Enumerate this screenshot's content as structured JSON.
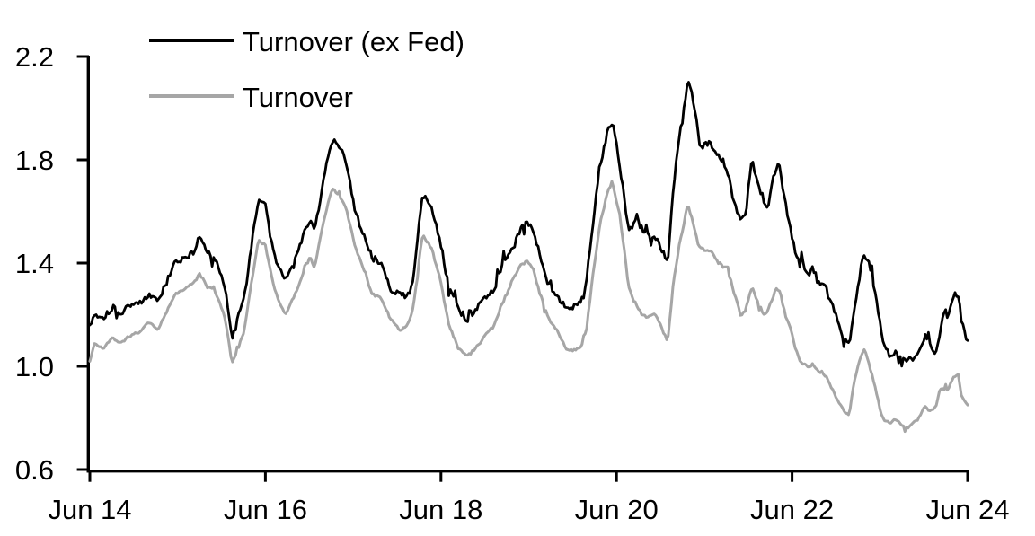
{
  "chart_data": {
    "type": "line",
    "title": "",
    "background_color": "#ffffff",
    "axis_color": "#000000",
    "text_color": "#000000",
    "x_axis": {
      "range": [
        0,
        10
      ],
      "ticks": [
        0,
        2,
        4,
        6,
        8,
        10
      ],
      "tick_labels": [
        "Jun 14",
        "Jun 16",
        "Jun 18",
        "Jun 20",
        "Jun 22",
        "Jun 24"
      ],
      "grid": false
    },
    "y_axis": {
      "range": [
        0.6,
        2.2
      ],
      "ticks": [
        0.6,
        1.0,
        1.4,
        1.8,
        2.2
      ],
      "tick_labels": [
        "0.6",
        "1.0",
        "1.4",
        "1.8",
        "2.2"
      ],
      "grid": false
    },
    "legend": {
      "position": "top-left-inside",
      "entries": [
        "Turnover (ex Fed)",
        "Turnover"
      ]
    },
    "series": [
      {
        "name": "Turnover (ex Fed)",
        "color": "#000000",
        "points": [
          [
            0,
            1.16
          ],
          [
            0.05,
            1.2
          ],
          [
            0.15,
            1.19
          ],
          [
            0.26,
            1.23
          ],
          [
            0.36,
            1.21
          ],
          [
            0.46,
            1.24
          ],
          [
            0.56,
            1.24
          ],
          [
            0.67,
            1.28
          ],
          [
            0.77,
            1.25
          ],
          [
            0.87,
            1.32
          ],
          [
            0.97,
            1.4
          ],
          [
            1.07,
            1.42
          ],
          [
            1.18,
            1.44
          ],
          [
            1.25,
            1.5
          ],
          [
            1.33,
            1.44
          ],
          [
            1.43,
            1.42
          ],
          [
            1.54,
            1.31
          ],
          [
            1.62,
            1.1
          ],
          [
            1.69,
            1.19
          ],
          [
            1.76,
            1.27
          ],
          [
            1.84,
            1.46
          ],
          [
            1.92,
            1.65
          ],
          [
            2.0,
            1.63
          ],
          [
            2.05,
            1.52
          ],
          [
            2.1,
            1.44
          ],
          [
            2.15,
            1.38
          ],
          [
            2.23,
            1.34
          ],
          [
            2.35,
            1.43
          ],
          [
            2.46,
            1.53
          ],
          [
            2.51,
            1.56
          ],
          [
            2.56,
            1.52
          ],
          [
            2.66,
            1.72
          ],
          [
            2.76,
            1.88
          ],
          [
            2.85,
            1.85
          ],
          [
            2.92,
            1.8
          ],
          [
            3.02,
            1.6
          ],
          [
            3.12,
            1.51
          ],
          [
            3.22,
            1.42
          ],
          [
            3.33,
            1.4
          ],
          [
            3.43,
            1.3
          ],
          [
            3.53,
            1.28
          ],
          [
            3.63,
            1.27
          ],
          [
            3.68,
            1.33
          ],
          [
            3.74,
            1.52
          ],
          [
            3.79,
            1.67
          ],
          [
            3.85,
            1.64
          ],
          [
            3.89,
            1.61
          ],
          [
            3.99,
            1.49
          ],
          [
            4.09,
            1.31
          ],
          [
            4.2,
            1.22
          ],
          [
            4.3,
            1.18
          ],
          [
            4.4,
            1.22
          ],
          [
            4.5,
            1.27
          ],
          [
            4.61,
            1.3
          ],
          [
            4.71,
            1.41
          ],
          [
            4.81,
            1.45
          ],
          [
            4.91,
            1.53
          ],
          [
            4.98,
            1.56
          ],
          [
            5.05,
            1.52
          ],
          [
            5.12,
            1.44
          ],
          [
            5.22,
            1.32
          ],
          [
            5.32,
            1.27
          ],
          [
            5.44,
            1.22
          ],
          [
            5.58,
            1.24
          ],
          [
            5.63,
            1.28
          ],
          [
            5.66,
            1.34
          ],
          [
            5.73,
            1.55
          ],
          [
            5.81,
            1.77
          ],
          [
            5.91,
            1.93
          ],
          [
            5.96,
            1.95
          ],
          [
            6.04,
            1.77
          ],
          [
            6.14,
            1.52
          ],
          [
            6.19,
            1.55
          ],
          [
            6.24,
            1.57
          ],
          [
            6.29,
            1.53
          ],
          [
            6.35,
            1.51
          ],
          [
            6.45,
            1.5
          ],
          [
            6.55,
            1.43
          ],
          [
            6.58,
            1.39
          ],
          [
            6.65,
            1.7
          ],
          [
            6.72,
            1.9
          ],
          [
            6.76,
            1.97
          ],
          [
            6.81,
            2.11
          ],
          [
            6.86,
            2.05
          ],
          [
            6.91,
            1.95
          ],
          [
            6.93,
            1.9
          ],
          [
            6.96,
            1.84
          ],
          [
            7.01,
            1.86
          ],
          [
            7.06,
            1.87
          ],
          [
            7.11,
            1.84
          ],
          [
            7.16,
            1.82
          ],
          [
            7.22,
            1.79
          ],
          [
            7.27,
            1.75
          ],
          [
            7.32,
            1.66
          ],
          [
            7.37,
            1.6
          ],
          [
            7.42,
            1.57
          ],
          [
            7.47,
            1.58
          ],
          [
            7.52,
            1.75
          ],
          [
            7.55,
            1.8
          ],
          [
            7.59,
            1.73
          ],
          [
            7.68,
            1.64
          ],
          [
            7.73,
            1.61
          ],
          [
            7.76,
            1.7
          ],
          [
            7.82,
            1.79
          ],
          [
            7.86,
            1.77
          ],
          [
            7.93,
            1.62
          ],
          [
            7.98,
            1.54
          ],
          [
            8.03,
            1.45
          ],
          [
            8.09,
            1.39
          ],
          [
            8.14,
            1.37
          ],
          [
            8.19,
            1.36
          ],
          [
            8.24,
            1.38
          ],
          [
            8.29,
            1.33
          ],
          [
            8.34,
            1.32
          ],
          [
            8.39,
            1.3
          ],
          [
            8.44,
            1.25
          ],
          [
            8.49,
            1.21
          ],
          [
            8.55,
            1.14
          ],
          [
            8.6,
            1.1
          ],
          [
            8.65,
            1.08
          ],
          [
            8.7,
            1.19
          ],
          [
            8.75,
            1.31
          ],
          [
            8.8,
            1.41
          ],
          [
            8.82,
            1.44
          ],
          [
            8.85,
            1.42
          ],
          [
            8.9,
            1.37
          ],
          [
            8.96,
            1.26
          ],
          [
            9.01,
            1.15
          ],
          [
            9.06,
            1.07
          ],
          [
            9.11,
            1.04
          ],
          [
            9.16,
            1.05
          ],
          [
            9.21,
            1.05
          ],
          [
            9.26,
            1.03
          ],
          [
            9.31,
            1.02
          ],
          [
            9.37,
            1.03
          ],
          [
            9.42,
            1.04
          ],
          [
            9.47,
            1.08
          ],
          [
            9.52,
            1.12
          ],
          [
            9.56,
            1.1
          ],
          [
            9.6,
            1.05
          ],
          [
            9.64,
            1.05
          ],
          [
            9.67,
            1.1
          ],
          [
            9.7,
            1.17
          ],
          [
            9.72,
            1.21
          ],
          [
            9.75,
            1.22
          ],
          [
            9.77,
            1.19
          ],
          [
            9.81,
            1.25
          ],
          [
            9.84,
            1.28
          ],
          [
            9.89,
            1.28
          ],
          [
            9.93,
            1.18
          ],
          [
            9.97,
            1.12
          ],
          [
            10,
            1.1
          ]
        ]
      },
      {
        "name": "Turnover",
        "color": "#a6a6a6",
        "points": [
          [
            0,
            1.02
          ],
          [
            0.05,
            1.09
          ],
          [
            0.15,
            1.07
          ],
          [
            0.26,
            1.11
          ],
          [
            0.36,
            1.09
          ],
          [
            0.46,
            1.12
          ],
          [
            0.56,
            1.13
          ],
          [
            0.67,
            1.17
          ],
          [
            0.77,
            1.14
          ],
          [
            0.87,
            1.21
          ],
          [
            0.97,
            1.28
          ],
          [
            1.07,
            1.3
          ],
          [
            1.18,
            1.32
          ],
          [
            1.25,
            1.36
          ],
          [
            1.33,
            1.31
          ],
          [
            1.43,
            1.29
          ],
          [
            1.54,
            1.19
          ],
          [
            1.62,
            1.01
          ],
          [
            1.69,
            1.07
          ],
          [
            1.76,
            1.14
          ],
          [
            1.84,
            1.32
          ],
          [
            1.92,
            1.49
          ],
          [
            2.0,
            1.47
          ],
          [
            2.05,
            1.38
          ],
          [
            2.1,
            1.31
          ],
          [
            2.15,
            1.25
          ],
          [
            2.23,
            1.2
          ],
          [
            2.35,
            1.29
          ],
          [
            2.46,
            1.39
          ],
          [
            2.51,
            1.42
          ],
          [
            2.56,
            1.38
          ],
          [
            2.66,
            1.56
          ],
          [
            2.76,
            1.69
          ],
          [
            2.85,
            1.66
          ],
          [
            2.92,
            1.61
          ],
          [
            3.02,
            1.47
          ],
          [
            3.12,
            1.37
          ],
          [
            3.22,
            1.28
          ],
          [
            3.33,
            1.26
          ],
          [
            3.43,
            1.18
          ],
          [
            3.53,
            1.14
          ],
          [
            3.58,
            1.15
          ],
          [
            3.63,
            1.17
          ],
          [
            3.68,
            1.22
          ],
          [
            3.74,
            1.38
          ],
          [
            3.79,
            1.51
          ],
          [
            3.85,
            1.48
          ],
          [
            3.89,
            1.46
          ],
          [
            3.99,
            1.34
          ],
          [
            4.09,
            1.16
          ],
          [
            4.2,
            1.07
          ],
          [
            4.3,
            1.04
          ],
          [
            4.4,
            1.07
          ],
          [
            4.5,
            1.12
          ],
          [
            4.61,
            1.16
          ],
          [
            4.71,
            1.25
          ],
          [
            4.81,
            1.33
          ],
          [
            4.91,
            1.39
          ],
          [
            4.98,
            1.41
          ],
          [
            5.05,
            1.38
          ],
          [
            5.12,
            1.29
          ],
          [
            5.22,
            1.19
          ],
          [
            5.32,
            1.14
          ],
          [
            5.44,
            1.06
          ],
          [
            5.58,
            1.07
          ],
          [
            5.63,
            1.1
          ],
          [
            5.66,
            1.15
          ],
          [
            5.73,
            1.35
          ],
          [
            5.81,
            1.55
          ],
          [
            5.91,
            1.69
          ],
          [
            5.96,
            1.7
          ],
          [
            6.04,
            1.58
          ],
          [
            6.14,
            1.31
          ],
          [
            6.19,
            1.26
          ],
          [
            6.24,
            1.23
          ],
          [
            6.29,
            1.2
          ],
          [
            6.35,
            1.19
          ],
          [
            6.45,
            1.2
          ],
          [
            6.55,
            1.12
          ],
          [
            6.58,
            1.09
          ],
          [
            6.65,
            1.33
          ],
          [
            6.72,
            1.48
          ],
          [
            6.76,
            1.54
          ],
          [
            6.81,
            1.63
          ],
          [
            6.86,
            1.57
          ],
          [
            6.91,
            1.5
          ],
          [
            6.93,
            1.47
          ],
          [
            6.96,
            1.46
          ],
          [
            7.01,
            1.45
          ],
          [
            7.06,
            1.45
          ],
          [
            7.11,
            1.43
          ],
          [
            7.16,
            1.4
          ],
          [
            7.22,
            1.39
          ],
          [
            7.27,
            1.38
          ],
          [
            7.32,
            1.31
          ],
          [
            7.37,
            1.25
          ],
          [
            7.42,
            1.19
          ],
          [
            7.47,
            1.22
          ],
          [
            7.52,
            1.28
          ],
          [
            7.55,
            1.31
          ],
          [
            7.59,
            1.26
          ],
          [
            7.68,
            1.2
          ],
          [
            7.73,
            1.22
          ],
          [
            7.76,
            1.25
          ],
          [
            7.82,
            1.3
          ],
          [
            7.86,
            1.29
          ],
          [
            7.93,
            1.19
          ],
          [
            7.98,
            1.15
          ],
          [
            8.03,
            1.08
          ],
          [
            8.09,
            1.02
          ],
          [
            8.14,
            1.01
          ],
          [
            8.19,
            1.0
          ],
          [
            8.24,
            1.01
          ],
          [
            8.29,
            0.98
          ],
          [
            8.34,
            0.98
          ],
          [
            8.39,
            0.96
          ],
          [
            8.44,
            0.92
          ],
          [
            8.49,
            0.89
          ],
          [
            8.55,
            0.85
          ],
          [
            8.6,
            0.82
          ],
          [
            8.65,
            0.81
          ],
          [
            8.7,
            0.93
          ],
          [
            8.75,
            1.0
          ],
          [
            8.8,
            1.05
          ],
          [
            8.82,
            1.07
          ],
          [
            8.85,
            1.04
          ],
          [
            8.9,
            0.98
          ],
          [
            8.96,
            0.9
          ],
          [
            9.01,
            0.82
          ],
          [
            9.06,
            0.79
          ],
          [
            9.11,
            0.78
          ],
          [
            9.16,
            0.79
          ],
          [
            9.21,
            0.79
          ],
          [
            9.26,
            0.77
          ],
          [
            9.31,
            0.76
          ],
          [
            9.37,
            0.78
          ],
          [
            9.42,
            0.79
          ],
          [
            9.47,
            0.82
          ],
          [
            9.52,
            0.85
          ],
          [
            9.56,
            0.83
          ],
          [
            9.6,
            0.83
          ],
          [
            9.64,
            0.84
          ],
          [
            9.67,
            0.9
          ],
          [
            9.72,
            0.92
          ],
          [
            9.75,
            0.93
          ],
          [
            9.77,
            0.91
          ],
          [
            9.83,
            0.95
          ],
          [
            9.86,
            0.96
          ],
          [
            9.89,
            0.97
          ],
          [
            9.93,
            0.89
          ],
          [
            9.97,
            0.86
          ],
          [
            10,
            0.85
          ]
        ]
      }
    ]
  }
}
